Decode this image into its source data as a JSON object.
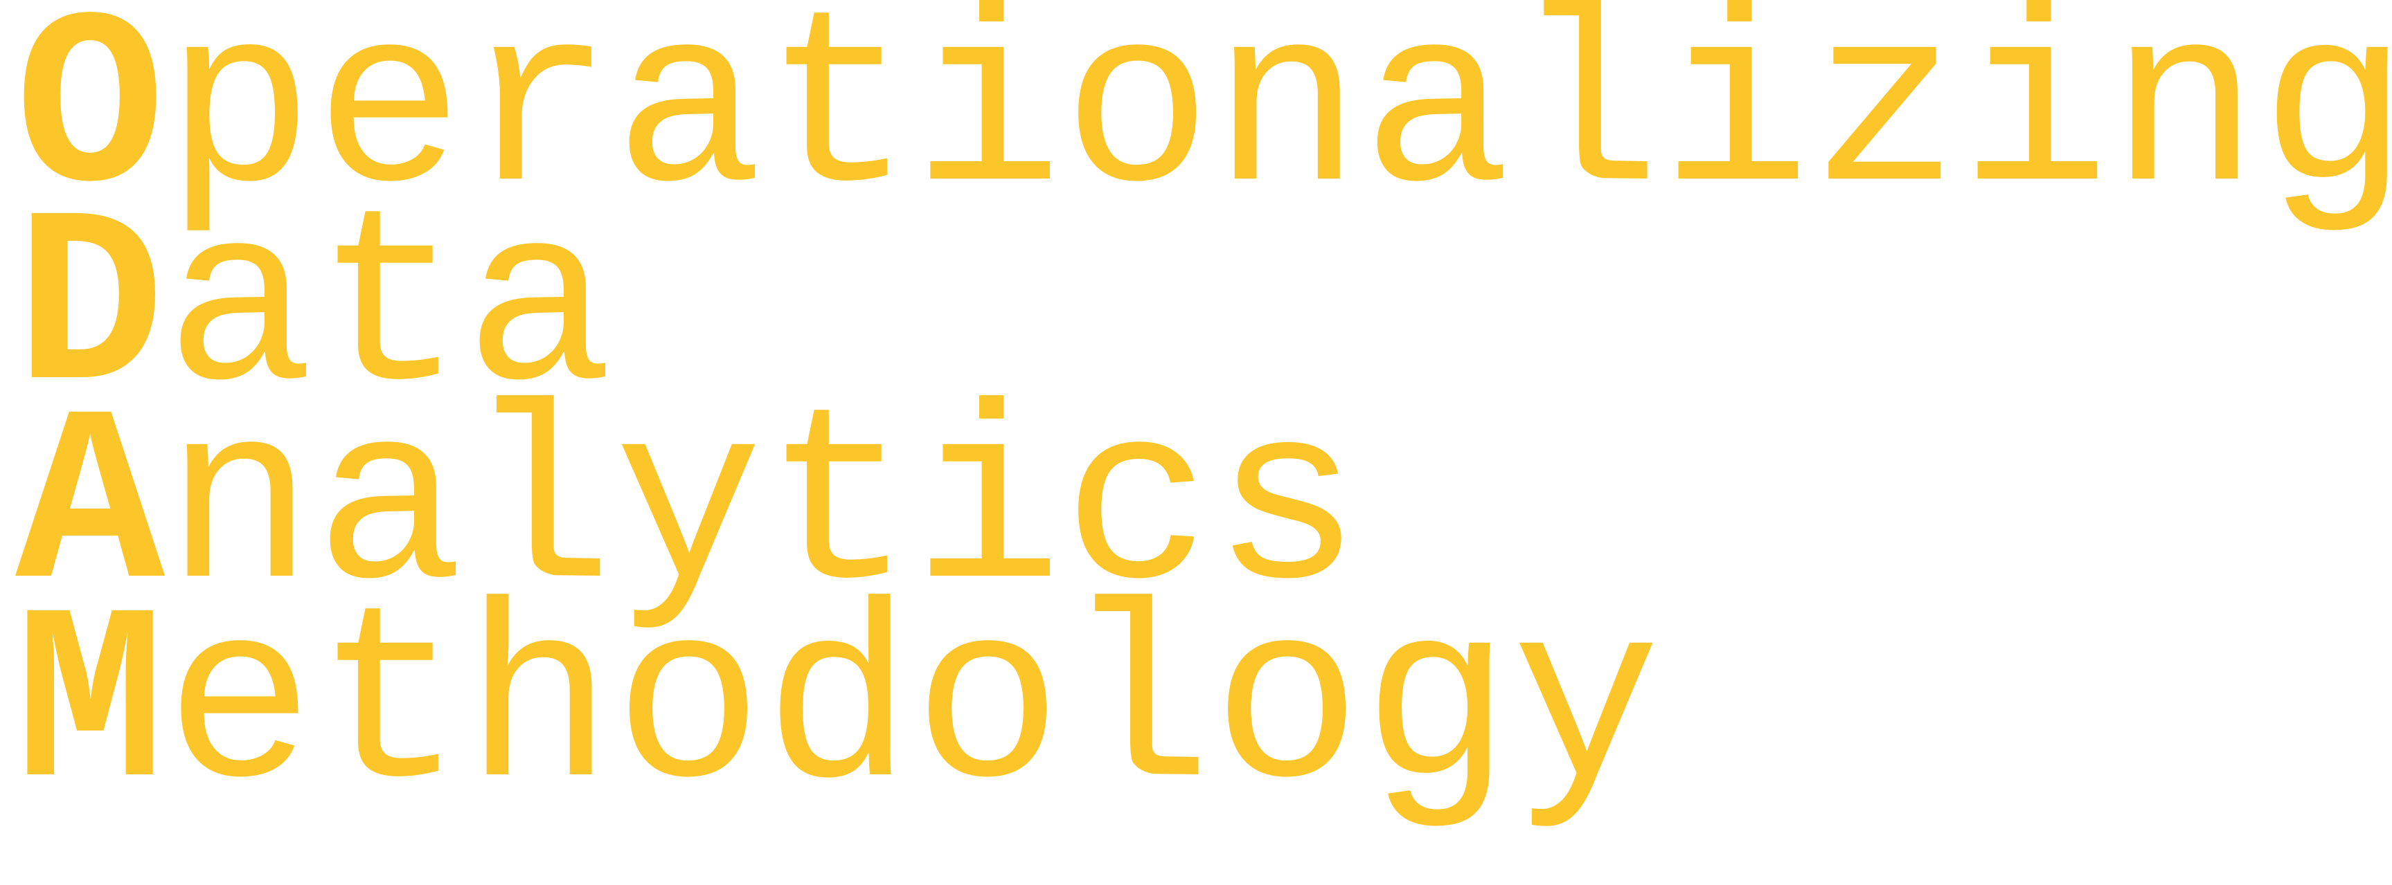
{
  "colors": {
    "text": "#fcc62a",
    "background": "#ffffff"
  },
  "logo": {
    "lines": [
      {
        "initial": "O",
        "rest": "perationalizing"
      },
      {
        "initial": "D",
        "rest": "ata"
      },
      {
        "initial": "A",
        "rest": "nalytics"
      },
      {
        "initial": "M",
        "rest": "ethodology"
      }
    ]
  }
}
